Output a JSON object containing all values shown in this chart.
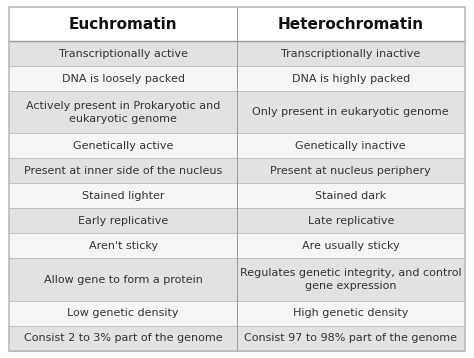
{
  "col1_header": "Euchromatin",
  "col2_header": "Heterochromatin",
  "rows": [
    [
      "Transcriptionally active",
      "Transcriptionally inactive"
    ],
    [
      "DNA is loosely packed",
      "DNA is highly packed"
    ],
    [
      "Actively present in Prokaryotic and\neukaryotic genome",
      "Only present in eukaryotic genome"
    ],
    [
      "Genetically active",
      "Genetically inactive"
    ],
    [
      "Present at inner side of the nucleus",
      "Present at nucleus periphery"
    ],
    [
      "Stained lighter",
      "Stained dark"
    ],
    [
      "Early replicative",
      "Late replicative"
    ],
    [
      "Aren't sticky",
      "Are usually sticky"
    ],
    [
      "Allow gene to form a protein",
      "Regulates genetic integrity, and control\ngene expression"
    ],
    [
      "Low genetic density",
      "High genetic density"
    ],
    [
      "Consist 2 to 3% part of the genome",
      "Consist 97 to 98% part of the genome"
    ]
  ],
  "header_bg": "#ffffff",
  "row_bg_odd": "#e2e2e2",
  "row_bg_even": "#f5f5f5",
  "header_fontsize": 11,
  "row_fontsize": 8,
  "header_color": "#111111",
  "row_color": "#333333",
  "border_color": "#bbbbbb",
  "divider_color": "#999999",
  "fig_bg": "#ffffff",
  "fig_width": 4.74,
  "fig_height": 3.58,
  "dpi": 100
}
